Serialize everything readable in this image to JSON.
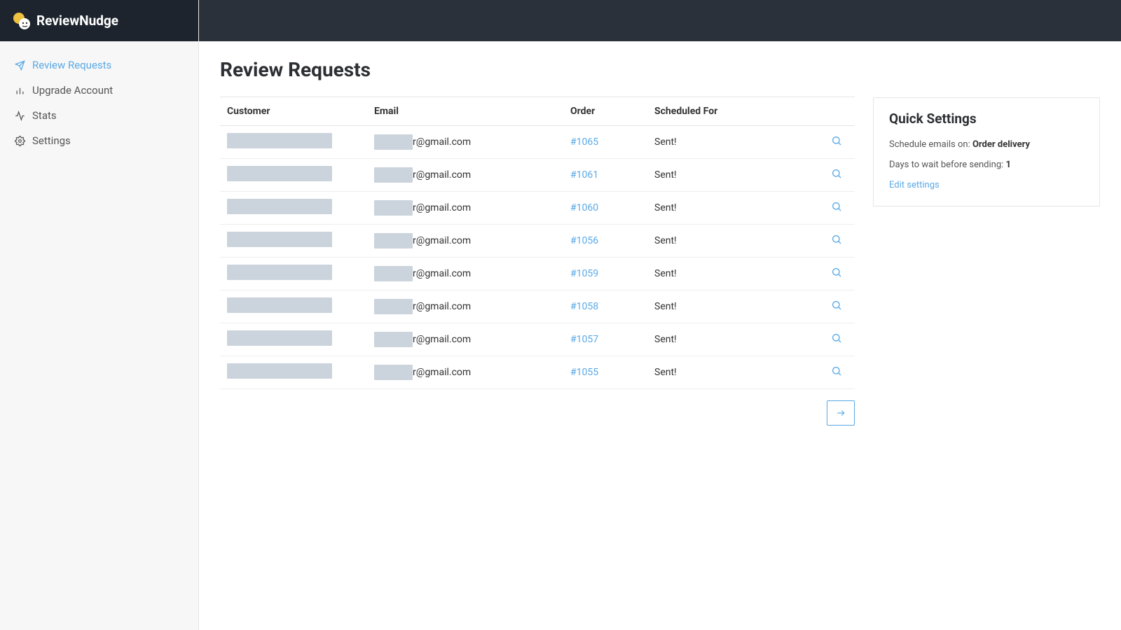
{
  "brand": {
    "name": "ReviewNudge"
  },
  "sidebar": {
    "items": [
      {
        "label": "Review Requests",
        "icon": "send",
        "active": true
      },
      {
        "label": "Upgrade Account",
        "icon": "bars",
        "active": false
      },
      {
        "label": "Stats",
        "icon": "activity",
        "active": false
      },
      {
        "label": "Settings",
        "icon": "gear",
        "active": false
      }
    ]
  },
  "page": {
    "title": "Review Requests"
  },
  "table": {
    "columns": [
      "Customer",
      "Email",
      "Order",
      "Scheduled For",
      ""
    ],
    "rows": [
      {
        "email_suffix": "r@gmail.com",
        "order": "#1065",
        "scheduled": "Sent!"
      },
      {
        "email_suffix": "r@gmail.com",
        "order": "#1061",
        "scheduled": "Sent!"
      },
      {
        "email_suffix": "r@gmail.com",
        "order": "#1060",
        "scheduled": "Sent!"
      },
      {
        "email_suffix": "r@gmail.com",
        "order": "#1056",
        "scheduled": "Sent!"
      },
      {
        "email_suffix": "r@gmail.com",
        "order": "#1059",
        "scheduled": "Sent!"
      },
      {
        "email_suffix": "r@gmail.com",
        "order": "#1058",
        "scheduled": "Sent!"
      },
      {
        "email_suffix": "r@gmail.com",
        "order": "#1057",
        "scheduled": "Sent!"
      },
      {
        "email_suffix": "r@gmail.com",
        "order": "#1055",
        "scheduled": "Sent!"
      }
    ]
  },
  "quick_settings": {
    "title": "Quick Settings",
    "schedule_label": "Schedule emails on: ",
    "schedule_value": "Order delivery",
    "days_label": "Days to wait before sending: ",
    "days_value": "1",
    "edit_label": "Edit settings"
  },
  "colors": {
    "accent": "#5aa9e6",
    "sidebar_header": "#1e242d",
    "topbar": "#2b313b",
    "redact": "#cbd3dc",
    "border": "#e5e5e5"
  }
}
